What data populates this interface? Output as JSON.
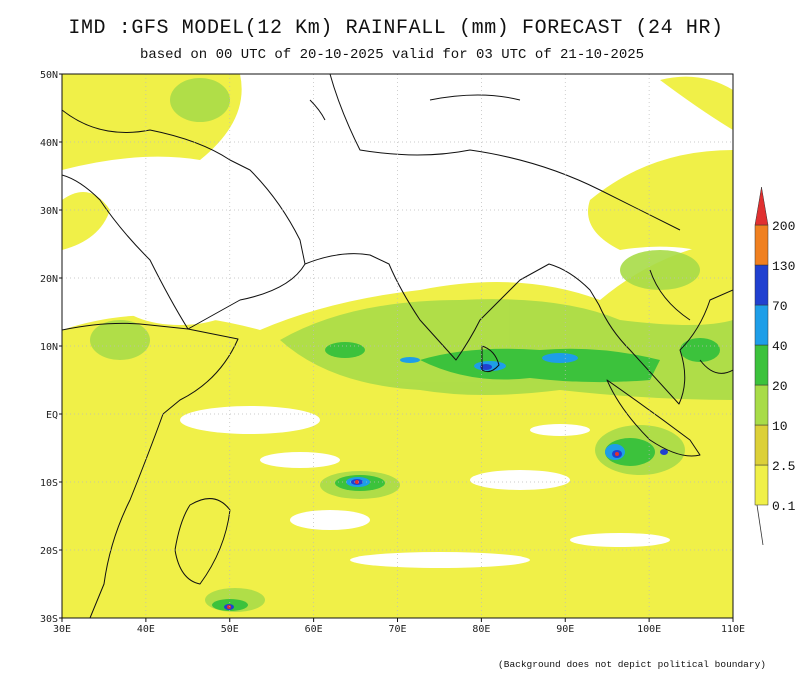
{
  "header": {
    "title": "IMD :GFS MODEL(12 Km) RAINFALL (mm) FORECAST (24 HR)",
    "subtitle": "based on 00 UTC of 20-10-2025 valid for 03 UTC of 21-10-2025"
  },
  "map": {
    "xticks": [
      "30E",
      "40E",
      "50E",
      "60E",
      "70E",
      "80E",
      "90E",
      "100E",
      "110E"
    ],
    "yticks": [
      "50N",
      "40N",
      "30N",
      "20N",
      "10N",
      "EQ",
      "10S",
      "20S",
      "30S"
    ]
  },
  "legend": {
    "levels": [
      "0.1",
      "2.5",
      "10",
      "20",
      "40",
      "70",
      "130",
      "200"
    ],
    "colors": [
      "#f0f048",
      "#dcd038",
      "#a8dc48",
      "#3cc23c",
      "#1e9ee8",
      "#2040d0",
      "#f08020",
      "#e03030"
    ]
  },
  "footnote": "(Background does not depict political boundary)"
}
